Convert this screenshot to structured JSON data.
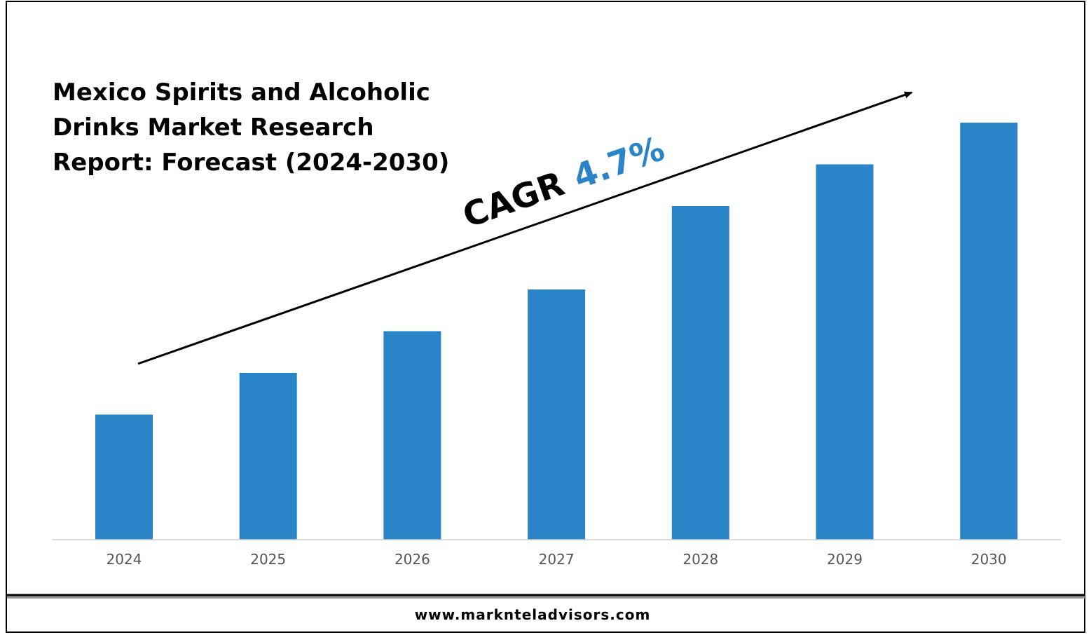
{
  "chart_data": {
    "type": "bar",
    "title_lines": [
      "Mexico Spirits and Alcoholic",
      "Drinks Market Research",
      "Report: Forecast (2024-2030)"
    ],
    "categories": [
      "2024",
      "2025",
      "2026",
      "2027",
      "2028",
      "2029",
      "2030"
    ],
    "values": [
      30,
      40,
      50,
      60,
      80,
      90,
      100
    ],
    "ylim": [
      0,
      100
    ],
    "grid": false,
    "legend": "none",
    "bar_color": "#2A84C8",
    "annotation": {
      "label": "CAGR",
      "value": "4.7%",
      "value_color": "#2A84C8"
    }
  },
  "footer": {
    "website": "www.marknteladvisors.com"
  }
}
